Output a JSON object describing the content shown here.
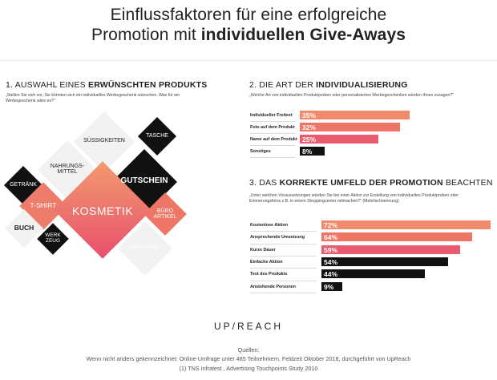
{
  "title": {
    "line1": "Einflussfaktoren für eine erfolgreiche",
    "line2_regular": "Promotion mit ",
    "line2_bold": "individuellen Give-Aways"
  },
  "section1": {
    "heading_regular": "1. AUSWAHL EINES ",
    "heading_bold": "ERWÜNSCHTEN PRODUKTS",
    "question": "„Stellen Sie sich vor, Sie könnten sich ein individuelles Werbegeschenk wünschen. Was für ein Werbegeschenk wäre es?\""
  },
  "diamonds": [
    {
      "label": "KOSMETIK"
    },
    {
      "label": "GUTSCHEIN"
    },
    {
      "label": "SÜSSIGKEITEN"
    },
    {
      "label": "NAHRUNGS-\nMITTEL"
    },
    {
      "label": "T-SHIRT"
    },
    {
      "label": "TASCHE"
    },
    {
      "label": "GETRÄNK"
    },
    {
      "label": "BÜRO\nARTIKEL"
    },
    {
      "label": "SHAMPOO"
    },
    {
      "label": "BUCH"
    },
    {
      "label": "WERK\nZEUG"
    }
  ],
  "section2": {
    "heading_regular": "2. DIE ART DER ",
    "heading_bold": "INDIVIDUALISIERUNG",
    "question": "„Welche Art von individuellen Produktproben oder personalisierten Werbegeschenken würden Ihnen zusagen?\""
  },
  "section3": {
    "heading_regular_1": "3. DAS ",
    "heading_bold": "KORREKTE UMFELD DER PROMOTION",
    "heading_regular_2": " BEACHTEN",
    "question": "„Unter welchen Voraussetzungen würden Sie bei einer Aktion zur Erstellung von individuellen Produktproben oder Erinnerungsfotos z.B. in einem Shoppingcenter mitmachen?\" (Mehrfachnennung)"
  },
  "chart_data": [
    {
      "type": "bar",
      "orientation": "horizontal",
      "categories": [
        "Individueller Freitext",
        "Foto auf dem Produkt",
        "Name auf dem Produkt",
        "Sonstiges"
      ],
      "values": [
        35,
        32,
        25,
        8
      ],
      "value_labels": [
        "35%",
        "32%",
        "25%",
        "8%"
      ],
      "unit": "%",
      "colors": [
        "#f08a6a",
        "#ee7566",
        "#e85b6e",
        "#111111"
      ]
    },
    {
      "type": "bar",
      "orientation": "horizontal",
      "categories": [
        "Kostenlose Aktion",
        "Ansprechende Umsetzung",
        "Kurze Dauer",
        "Einfache Aktion",
        "Test des Produkts",
        "Anstehende Personen"
      ],
      "values": [
        72,
        64,
        59,
        54,
        44,
        9
      ],
      "value_labels": [
        "72%",
        "64%",
        "59%",
        "54%",
        "44%",
        "9%"
      ],
      "unit": "%",
      "colors": [
        "#f08a6a",
        "#ee7566",
        "#e85b6e",
        "#111111",
        "#111111",
        "#111111"
      ]
    }
  ],
  "logo": "UP/REACH",
  "sources": {
    "heading": "Quellen:",
    "line1": "Wenn nicht anders gekennzeichnet: Online-Umfrage unter 485 Teilnehmern, Feldzeit Oktober 2018, durchgeführt von UpReach",
    "line2": "(1) TNS Infratest , Advertising Touchpoints Study 2010"
  }
}
